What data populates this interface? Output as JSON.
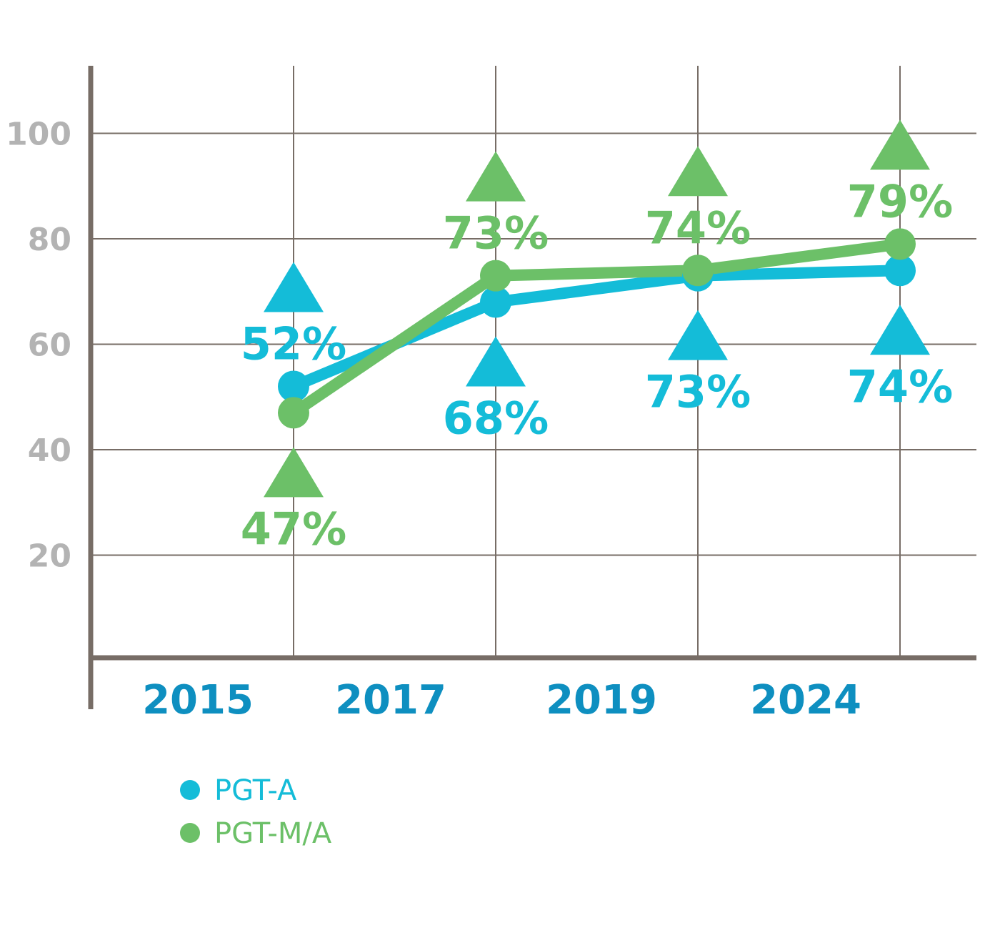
{
  "chart_data": {
    "type": "line",
    "x": [
      "2015",
      "2017",
      "2019",
      "2024"
    ],
    "ylim": [
      0,
      110
    ],
    "yticks": [
      20,
      40,
      60,
      80,
      100
    ],
    "grid": true,
    "legend_position": "bottom-left",
    "series": [
      {
        "name": "PGT-A",
        "color": "#14bcd8",
        "values": [
          52,
          68,
          73,
          74
        ],
        "labels": [
          "52%",
          "68%",
          "73%",
          "74%"
        ],
        "label_side": [
          "above",
          "below",
          "below",
          "below"
        ]
      },
      {
        "name": "PGT-M/A",
        "color": "#6cc068",
        "values": [
          47,
          73,
          74,
          79
        ],
        "labels": [
          "47%",
          "73%",
          "74%",
          "79%"
        ],
        "label_side": [
          "below",
          "above",
          "above",
          "above"
        ]
      }
    ],
    "axis_color": "#776d66",
    "grid_color": "#776d66",
    "ytick_color": "#b3b3b3",
    "xtick_color": "#0e8fc0"
  }
}
